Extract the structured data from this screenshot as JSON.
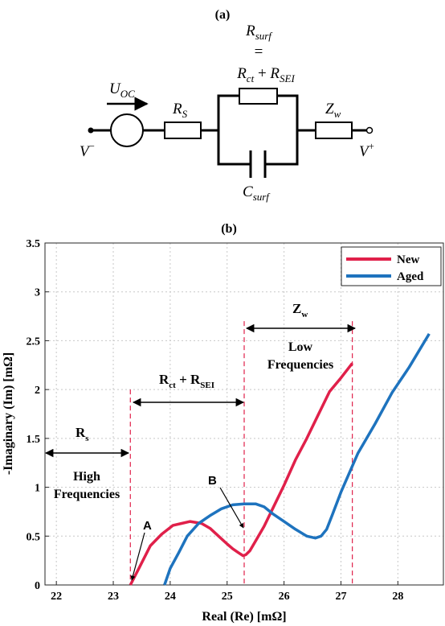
{
  "circuit": {
    "panel_label": "(a)",
    "r_surf": {
      "main": "R",
      "sub": "surf"
    },
    "equals": "=",
    "r_sum": {
      "a": "R",
      "a_sub": "ct",
      "plus": "+",
      "b": "R",
      "b_sub": "SEI"
    },
    "u_oc": {
      "main": "U",
      "sub": "OC"
    },
    "r_s": {
      "main": "R",
      "sub": "S"
    },
    "z_w": {
      "main": "Z",
      "sub": "w"
    },
    "c_surf": {
      "main": "C",
      "sub": "surf"
    },
    "v_minus": {
      "main": "V",
      "sup": "−"
    },
    "v_plus": {
      "main": "V",
      "sup": "+"
    }
  },
  "chart_data": {
    "type": "line",
    "panel_label": "(b)",
    "xlabel": "Real (Re) [mΩ]",
    "ylabel": "-Imaginary (Im) [mΩ]",
    "xlim": [
      21.8,
      28.8
    ],
    "ylim": [
      0,
      3.5
    ],
    "x_ticks": [
      "22",
      "23",
      "24",
      "25",
      "26",
      "27",
      "28"
    ],
    "y_ticks": [
      "0",
      "0.5",
      "1",
      "1.5",
      "2",
      "2.5",
      "3",
      "3.5"
    ],
    "grid": true,
    "legend_position": "top-right",
    "series": [
      {
        "name": "New",
        "color": "#e0204a",
        "x": [
          23.3,
          23.45,
          23.65,
          23.85,
          24.05,
          24.2,
          24.35,
          24.55,
          24.7,
          24.85,
          25.0,
          25.1,
          25.2,
          25.28,
          25.33,
          25.4,
          25.5,
          25.65,
          25.8,
          26.0,
          26.2,
          26.4,
          26.6,
          26.8,
          27.0,
          27.2
        ],
        "y": [
          0.0,
          0.17,
          0.4,
          0.52,
          0.61,
          0.63,
          0.65,
          0.63,
          0.58,
          0.5,
          0.42,
          0.37,
          0.33,
          0.3,
          0.31,
          0.35,
          0.45,
          0.6,
          0.78,
          1.02,
          1.28,
          1.5,
          1.74,
          1.98,
          2.12,
          2.27
        ]
      },
      {
        "name": "Aged",
        "color": "#1e73be",
        "x": [
          23.9,
          24.0,
          24.15,
          24.3,
          24.5,
          24.7,
          24.9,
          25.1,
          25.3,
          25.5,
          25.65,
          25.8,
          26.0,
          26.2,
          26.4,
          26.55,
          26.65,
          26.75,
          26.85,
          27.0,
          27.3,
          27.6,
          27.9,
          28.2,
          28.55
        ],
        "y": [
          0.0,
          0.17,
          0.33,
          0.5,
          0.63,
          0.71,
          0.78,
          0.82,
          0.83,
          0.83,
          0.8,
          0.73,
          0.65,
          0.57,
          0.5,
          0.48,
          0.5,
          0.57,
          0.72,
          0.95,
          1.35,
          1.65,
          1.97,
          2.23,
          2.57
        ]
      }
    ],
    "vlines": [
      23.3,
      25.3,
      27.2
    ],
    "annotations": {
      "rs": {
        "main": "R",
        "sub": "s"
      },
      "rct": {
        "a": "R",
        "a_sub": "ct",
        "plus": "+",
        "b": "R",
        "b_sub": "SEI"
      },
      "zw": {
        "main": "Z",
        "sub": "w"
      },
      "high_freq": [
        "High",
        "Frequencies"
      ],
      "low_freq": [
        "Low",
        "Frequencies"
      ],
      "point_a": "A",
      "point_b": "B"
    }
  }
}
